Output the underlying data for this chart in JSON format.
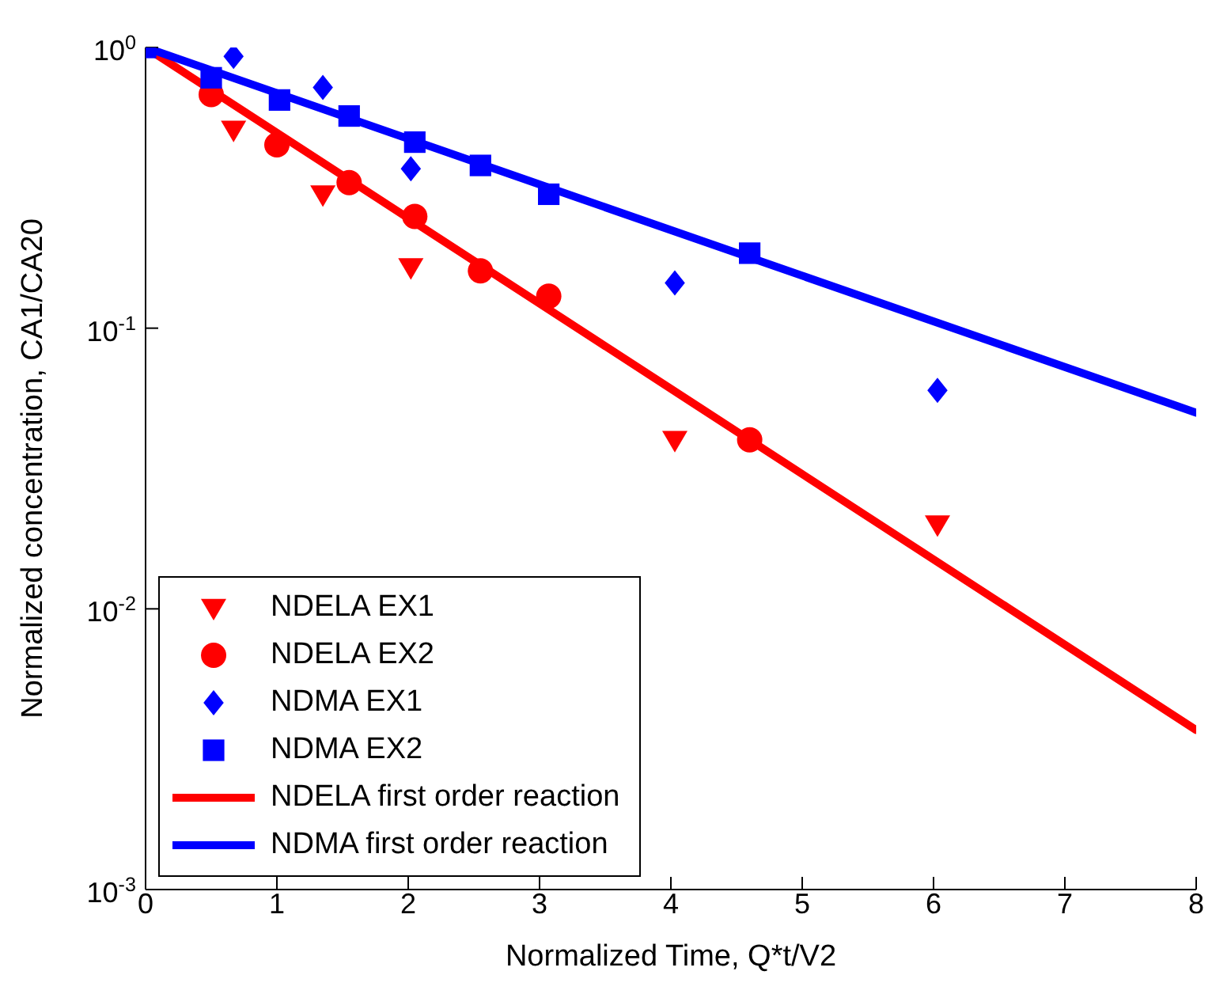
{
  "chart_data": {
    "type": "scatter",
    "xlabel": "Normalized Time, Q*t/V2",
    "ylabel": "Normalized concentration, CA1/CA20",
    "log": "y",
    "xlim": [
      0,
      8
    ],
    "xticks": [
      0,
      1,
      2,
      3,
      4,
      5,
      6,
      7,
      8
    ],
    "ylim": [
      0.001,
      1
    ],
    "yticks": [
      {
        "value": 0.001,
        "label": "10$^{-3}$"
      },
      {
        "value": 0.01,
        "label": "10$^{-2}$"
      },
      {
        "value": 0.1,
        "label": "10$^{-1}$"
      },
      {
        "value": 1,
        "label": "10$^{0}$"
      }
    ],
    "grid": false,
    "legend": "bottom left",
    "series": [
      {
        "name": "NDELA EX1",
        "marker": "triangle",
        "color": "#ff0000",
        "x": [
          0.67,
          1.35,
          2.02,
          4.03,
          6.03
        ],
        "values": [
          0.51,
          0.3,
          0.165,
          0.04,
          0.02
        ]
      },
      {
        "name": "NDELA EX2",
        "marker": "circle",
        "color": "#ff0000",
        "x": [
          0.5,
          1.0,
          1.55,
          2.05,
          2.55,
          3.07,
          4.6
        ],
        "values": [
          0.68,
          0.45,
          0.33,
          0.25,
          0.16,
          0.13,
          0.04
        ]
      },
      {
        "name": "NDMA EX1",
        "marker": "diamond",
        "color": "#0000ff",
        "x": [
          0.67,
          1.35,
          2.02,
          4.03,
          6.03
        ],
        "values": [
          0.93,
          0.72,
          0.37,
          0.145,
          0.06
        ]
      },
      {
        "name": "NDMA EX2",
        "marker": "square",
        "color": "#0000ff",
        "x": [
          0,
          0.5,
          1.02,
          1.55,
          2.05,
          2.55,
          3.07,
          4.6
        ],
        "values": [
          1,
          0.78,
          0.65,
          0.57,
          0.46,
          0.38,
          0.3,
          0.185
        ]
      },
      {
        "name": "NDELA first order reaction",
        "type": "line",
        "marker": "none",
        "line_style": "solid",
        "color": "#ff0000",
        "x": [
          0,
          8
        ],
        "values": [
          1,
          0.0037
        ]
      },
      {
        "name": "NDMA first order reaction",
        "type": "line",
        "marker": "none",
        "line_style": "solid",
        "color": "#0000ff",
        "x": [
          0,
          8
        ],
        "values": [
          1,
          0.05
        ]
      }
    ]
  }
}
